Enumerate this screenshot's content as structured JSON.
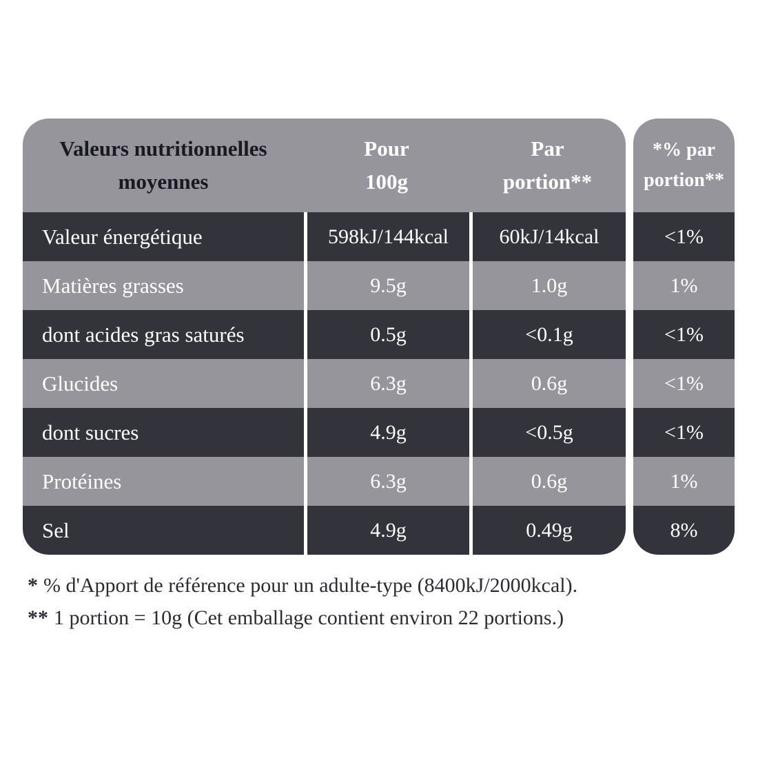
{
  "table": {
    "header": {
      "col_label_line1": "Valeurs nutritionnelles",
      "col_label_line2": "moyennes",
      "col_per100_line1": "Pour",
      "col_per100_line2": "100g",
      "col_portion_line1": "Par",
      "col_portion_line2": "portion**",
      "col_pct_line1": "*% par",
      "col_pct_line2": "portion**"
    },
    "rows": [
      {
        "label": "Valeur énergétique",
        "per100g": "598kJ/144kcal",
        "portion": "60kJ/14kcal",
        "pct": "<1%"
      },
      {
        "label": "Matières grasses",
        "per100g": "9.5g",
        "portion": "1.0g",
        "pct": "1%"
      },
      {
        "label": "dont acides gras saturés",
        "per100g": "0.5g",
        "portion": "<0.1g",
        "pct": "<1%"
      },
      {
        "label": "Glucides",
        "per100g": "6.3g",
        "portion": "0.6g",
        "pct": "<1%"
      },
      {
        "label": "dont sucres",
        "per100g": "4.9g",
        "portion": "<0.5g",
        "pct": "<1%"
      },
      {
        "label": "Protéines",
        "per100g": "6.3g",
        "portion": "0.6g",
        "pct": "1%"
      },
      {
        "label": "Sel",
        "per100g": "4.9g",
        "portion": "0.49g",
        "pct": "8%"
      }
    ]
  },
  "footnotes": [
    {
      "marker": "*",
      "text": "% d'Apport de référence pour un adulte-type (8400kJ/2000kcal)."
    },
    {
      "marker": "**",
      "text": "1 portion = 10g (Cet emballage contient environ 22 portions.)"
    }
  ],
  "colors": {
    "row_dark": "#33333b",
    "row_gray": "#96959c",
    "header_label_text": "#191922",
    "cell_text": "#ffffff",
    "footnote_text": "#2b2b33",
    "background": "#ffffff"
  }
}
